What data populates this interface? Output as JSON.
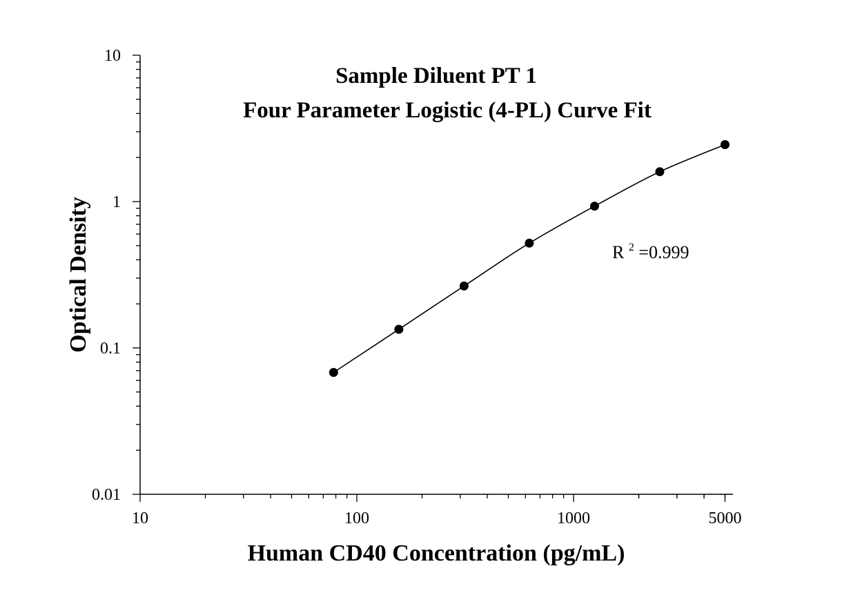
{
  "chart_data": {
    "type": "scatter",
    "title_lines": [
      "Sample Diluent PT 1",
      "Four Parameter Logistic (4-PL) Curve Fit"
    ],
    "xlabel": "Human CD40 Concentration (pg/mL)",
    "ylabel": "Optical Density",
    "x_scale": "log",
    "y_scale": "log",
    "xlim": [
      10,
      5000
    ],
    "ylim": [
      0.01,
      10
    ],
    "x_ticks": [
      {
        "value": 10,
        "label": "10"
      },
      {
        "value": 100,
        "label": "100"
      },
      {
        "value": 1000,
        "label": "1000"
      },
      {
        "value": 5000,
        "label": "5000"
      }
    ],
    "y_ticks": [
      {
        "value": 0.01,
        "label": "0.01"
      },
      {
        "value": 0.1,
        "label": "0.1"
      },
      {
        "value": 1,
        "label": "1"
      },
      {
        "value": 10,
        "label": "10"
      }
    ],
    "grid": false,
    "legend": "none",
    "series": [
      {
        "values": [
          {
            "x": 78.125,
            "y": 0.068
          },
          {
            "x": 156.25,
            "y": 0.134
          },
          {
            "x": 312.5,
            "y": 0.265
          },
          {
            "x": 625,
            "y": 0.52
          },
          {
            "x": 1250,
            "y": 0.93
          },
          {
            "x": 2500,
            "y": 1.6
          },
          {
            "x": 5000,
            "y": 2.45
          }
        ]
      }
    ],
    "annotation": {
      "base": "R",
      "sup": "2",
      "rest": "=0.999"
    },
    "colors": {
      "marker": "#000000",
      "line": "#000000",
      "axis": "#000000"
    }
  }
}
